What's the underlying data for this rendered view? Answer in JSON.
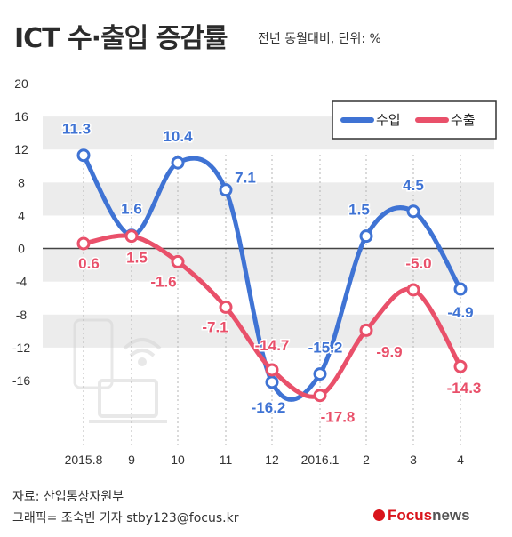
{
  "header": {
    "title": "ICT 수·출입 증감률",
    "subtitle": "전년 동월대비, 단위: %"
  },
  "footer": {
    "source": "자료: 산업통상자원부",
    "credit": "그래픽= 조숙빈 기자 stby123@focus.kr",
    "logo_focus": "Focus",
    "logo_news": "news"
  },
  "colors": {
    "import": "#3f73d4",
    "export": "#e9506a",
    "band": "#ececec"
  },
  "chart_data": {
    "type": "line",
    "categories": [
      "2015.8",
      "9",
      "10",
      "11",
      "12",
      "2016.1",
      "2",
      "3",
      "4"
    ],
    "ylim": [
      -16,
      20
    ],
    "yticks": [
      20,
      16,
      12,
      8,
      4,
      0,
      -4,
      -8,
      -12,
      -16
    ],
    "legend_position": "top-right",
    "series": [
      {
        "name": "수입",
        "key": "import",
        "values": [
          11.3,
          1.6,
          10.4,
          7.1,
          -16.2,
          -15.2,
          1.5,
          4.5,
          -4.9
        ],
        "labels": [
          "11.3",
          "1.6",
          "10.4",
          "7.1",
          "-16.2",
          "-15.2",
          "1.5",
          "4.5",
          "-4.9"
        ]
      },
      {
        "name": "수출",
        "key": "export",
        "values": [
          0.6,
          1.5,
          -1.6,
          -7.1,
          -14.7,
          -17.8,
          -9.9,
          -5.0,
          -14.3
        ],
        "labels": [
          "0.6",
          "1.5",
          "-1.6",
          "-7.1",
          "-14.7",
          "-17.8",
          "-9.9",
          "-5.0",
          "-14.3"
        ]
      }
    ]
  }
}
